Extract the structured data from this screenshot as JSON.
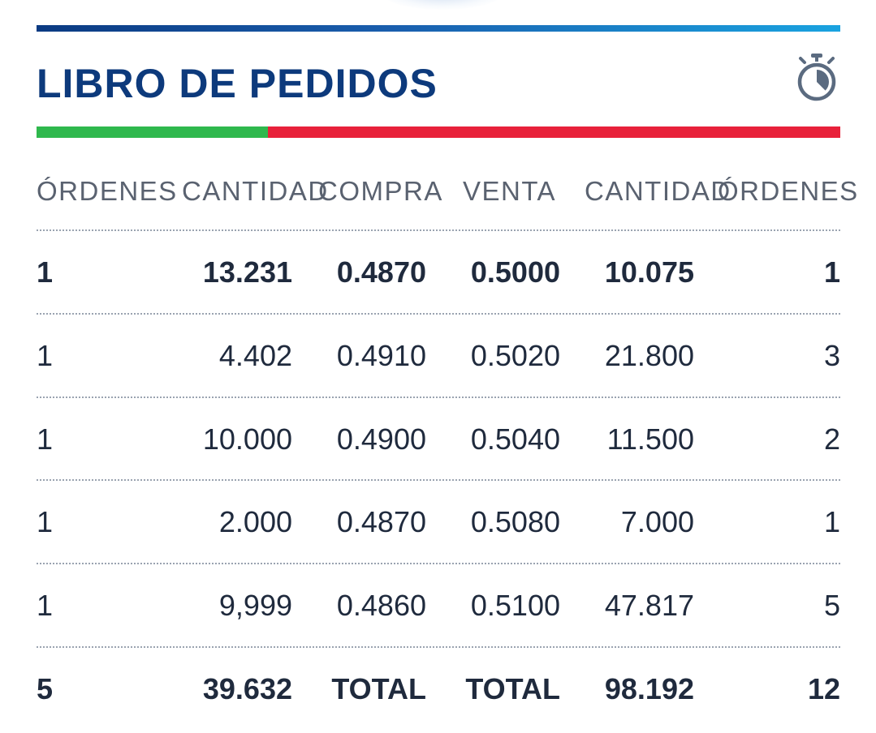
{
  "header": {
    "title": "LIBRO DE PEDIDOS",
    "timer_icon": "stopwatch-icon"
  },
  "ratio": {
    "buy_fraction": 0.288,
    "buy_color": "#2fb84d",
    "sell_color": "#e8213a"
  },
  "columns": [
    "ÓRDENES",
    "CANTIDAD",
    "COMPRA",
    "VENTA",
    "CANTIDAD",
    "ÓRDENES"
  ],
  "rows": [
    {
      "bid_orders": "1",
      "bid_qty": "13.231",
      "bid_price": "0.4870",
      "ask_price": "0.5000",
      "ask_qty": "10.075",
      "ask_orders": "1",
      "bold": true
    },
    {
      "bid_orders": "1",
      "bid_qty": "4.402",
      "bid_price": "0.4910",
      "ask_price": "0.5020",
      "ask_qty": "21.800",
      "ask_orders": "3",
      "bold": false
    },
    {
      "bid_orders": "1",
      "bid_qty": "10.000",
      "bid_price": "0.4900",
      "ask_price": "0.5040",
      "ask_qty": "11.500",
      "ask_orders": "2",
      "bold": false
    },
    {
      "bid_orders": "1",
      "bid_qty": "2.000",
      "bid_price": "0.4870",
      "ask_price": "0.5080",
      "ask_qty": "7.000",
      "ask_orders": "1",
      "bold": false
    },
    {
      "bid_orders": "1",
      "bid_qty": "9,999",
      "bid_price": "0.4860",
      "ask_price": "0.5100",
      "ask_qty": "47.817",
      "ask_orders": "5",
      "bold": false
    }
  ],
  "totals": {
    "bid_orders": "5",
    "bid_qty": "39.632",
    "bid_label": "TOTAL",
    "ask_label": "TOTAL",
    "ask_qty": "98.192",
    "ask_orders": "12"
  },
  "colors": {
    "title": "#0d3a7c",
    "header_text": "#5a6270",
    "body_text": "#1f2a3d"
  }
}
